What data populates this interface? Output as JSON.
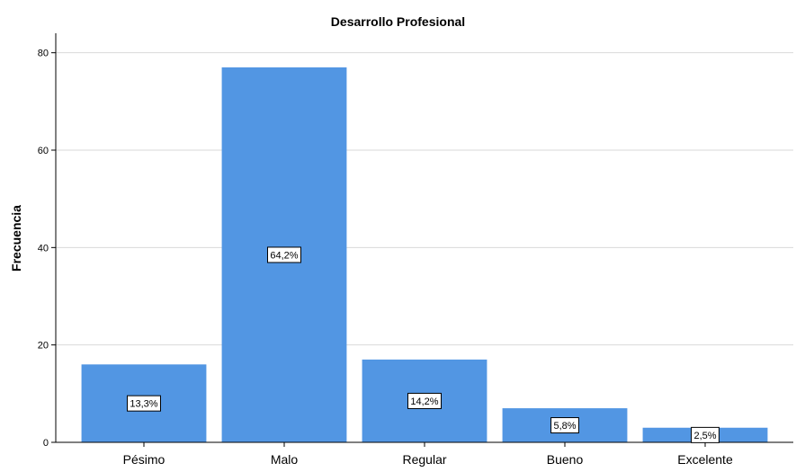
{
  "chart_data": {
    "type": "bar",
    "title": "Desarrollo Profesional",
    "xlabel": "",
    "ylabel": "Frecuencia",
    "categories": [
      "Pésimo",
      "Malo",
      "Regular",
      "Bueno",
      "Excelente"
    ],
    "values": [
      16,
      77,
      17,
      7,
      3
    ],
    "data_labels": [
      "13,3%",
      "64,2%",
      "14,2%",
      "5,8%",
      "2,5%"
    ],
    "ylim": [
      0,
      84
    ],
    "yticks": [
      "0",
      "20",
      "40",
      "60",
      "80"
    ],
    "grid": true,
    "legend": "none",
    "bar_color": "#5296e3"
  }
}
